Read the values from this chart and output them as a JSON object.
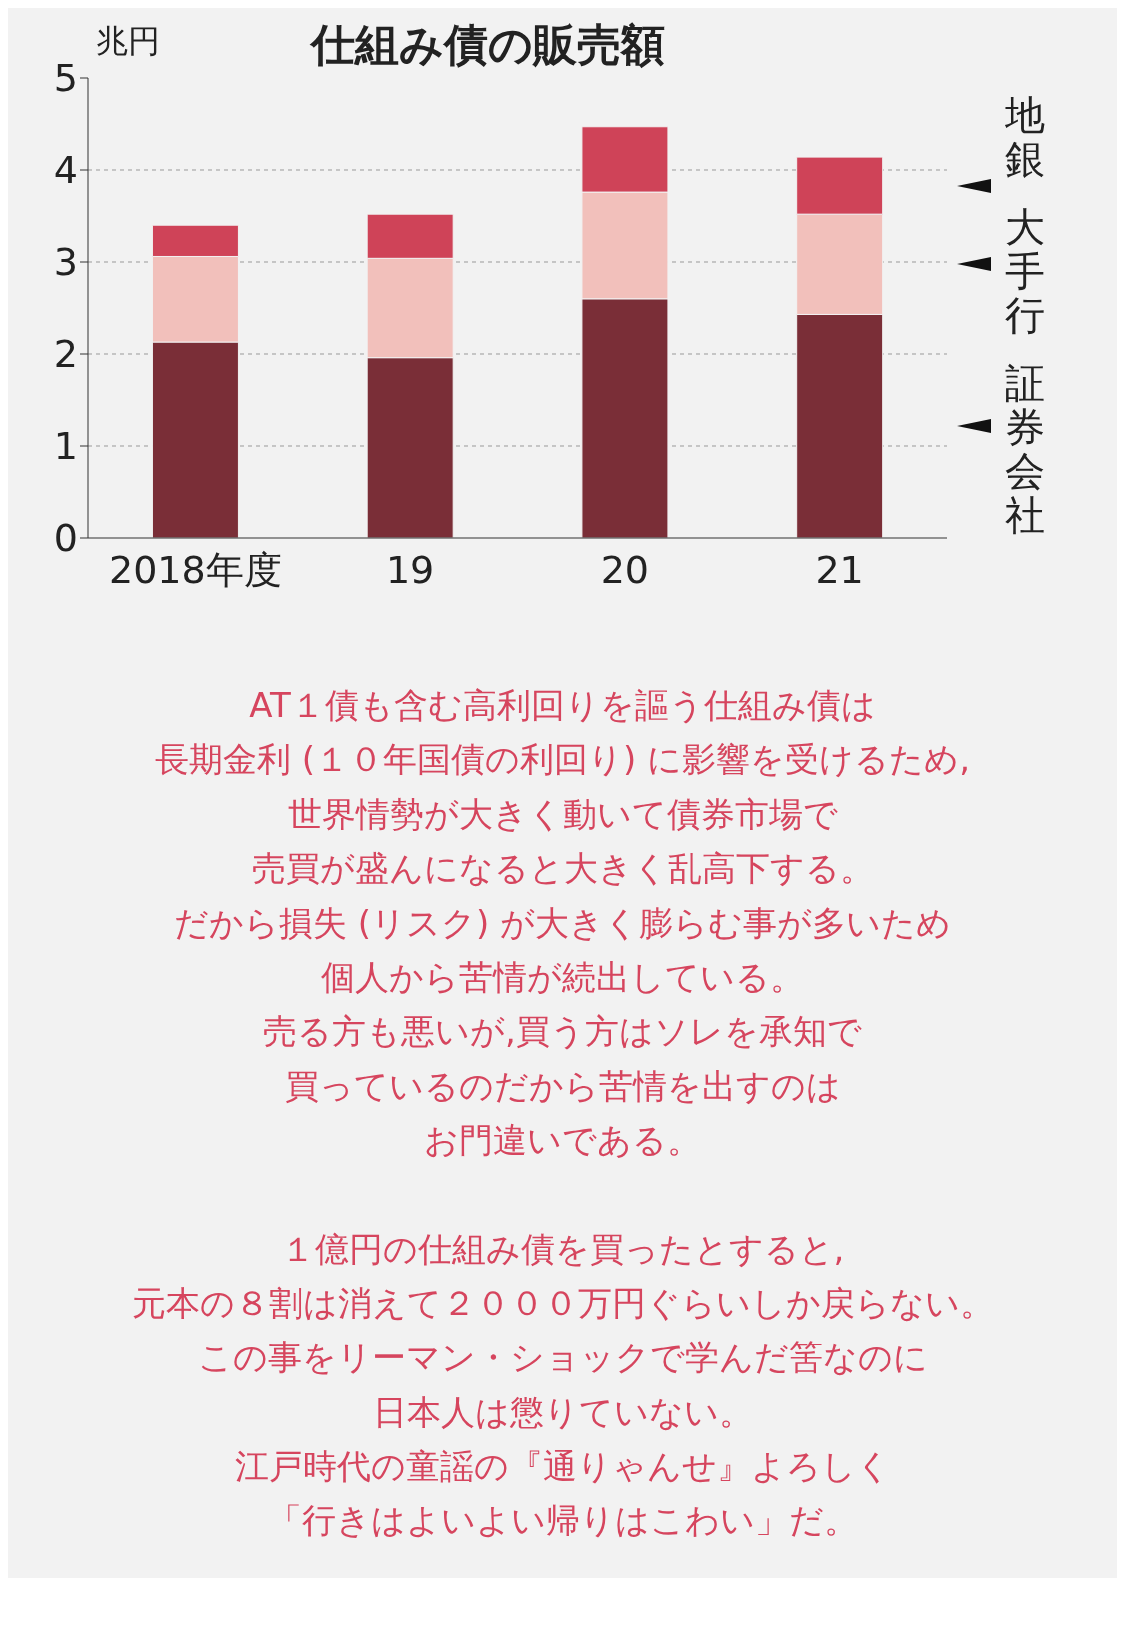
{
  "chart_data": {
    "type": "bar",
    "title": "仕組み債の販売額",
    "ylabel": "兆円",
    "stacked": true,
    "categories": [
      "2018年度",
      "19",
      "20",
      "21"
    ],
    "series": [
      {
        "name": "証券会社",
        "color": "#7a2e37",
        "values": [
          2.13,
          1.96,
          2.6,
          2.43
        ]
      },
      {
        "name": "大手行",
        "color": "#f2c0bb",
        "values": [
          0.93,
          1.08,
          1.16,
          1.09
        ]
      },
      {
        "name": "地銀",
        "color": "#cf4358",
        "values": [
          0.34,
          0.48,
          0.71,
          0.62
        ]
      }
    ],
    "ylim": [
      0,
      5
    ],
    "yticks": [
      0,
      1,
      2,
      3,
      4,
      5
    ],
    "grid": "y",
    "legend": false,
    "annotations": [
      "AT１債も含む高利回りを謳う仕組み債は",
      "長期金利 (１０年国債の利回り) に影響を受けるため,",
      "世界情勢が大きく動いて債券市場で",
      "売買が盛んになると大きく乱高下する。",
      "だから損失 (リスク) が大きく膨らむ事が多いため",
      "個人から苦情が続出している。",
      "売る方も悪いが,買う方はソレを承知で",
      "買っているのだから苦情を出すのは",
      "お門違いである。",
      "１億円の仕組み債を買ったとすると,",
      "元本の８割は消えて２０００万円ぐらいしか戻らない。",
      "この事をリーマン・ショックで学んだ筈なのに",
      "日本人は懲りていない。",
      "江戸時代の童謡の『通りゃんせ』よろしく",
      "「行きはよいよい帰りはこわい」だ。"
    ]
  }
}
